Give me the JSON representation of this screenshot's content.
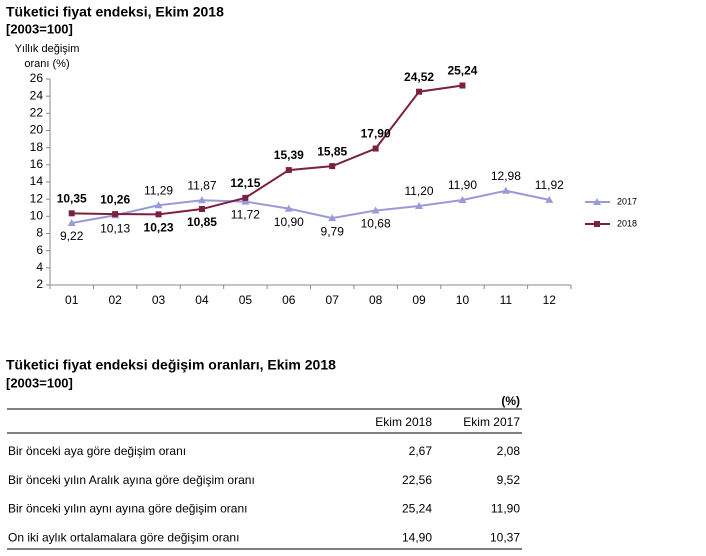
{
  "chart_data": {
    "type": "line",
    "title": "Tüketici fiyat endeksi, Ekim 2018",
    "subtitle": "[2003=100]",
    "y_label": [
      "Yıllık değişim",
      "oranı (%)"
    ],
    "categories": [
      "01",
      "02",
      "03",
      "04",
      "05",
      "06",
      "07",
      "08",
      "09",
      "10",
      "11",
      "12"
    ],
    "series": [
      {
        "name": "2017",
        "color": "#9a9ad8",
        "marker": "triangle",
        "values": [
          9.22,
          10.13,
          11.29,
          11.87,
          11.72,
          10.9,
          9.79,
          10.68,
          11.2,
          11.9,
          12.98,
          11.92
        ],
        "value_labels": [
          "9,22",
          "10,13",
          "11,29",
          "11,87",
          "11,72",
          "10,90",
          "9,79",
          "10,68",
          "11,20",
          "11,90",
          "12,98",
          "11,92"
        ]
      },
      {
        "name": "2018",
        "color": "#7b2042",
        "marker": "square",
        "values": [
          10.35,
          10.26,
          10.23,
          10.85,
          12.15,
          15.39,
          15.85,
          17.9,
          24.52,
          25.24,
          null,
          null
        ],
        "value_labels": [
          "10,35",
          "10,26",
          "10,23",
          "10,85",
          "12,15",
          "15,39",
          "15,85",
          "17,90",
          "24,52",
          "25,24",
          null,
          null
        ]
      }
    ],
    "ylim": [
      2,
      26
    ],
    "yticks": [
      2,
      4,
      6,
      8,
      10,
      12,
      14,
      16,
      18,
      20,
      22,
      24,
      26
    ],
    "grid": false,
    "legend": "right"
  },
  "table": {
    "title": "Tüketici fiyat endeksi değişim oranları, Ekim 2018",
    "subtitle": "[2003=100]",
    "unit": "(%)",
    "headers": [
      "Ekim 2018",
      "Ekim 2017"
    ],
    "rows": [
      {
        "label": "Bir önceki aya göre değişim oranı",
        "values": [
          "2,67",
          "2,08"
        ]
      },
      {
        "label": "Bir önceki yılın Aralık ayına göre değişim oranı",
        "values": [
          "22,56",
          "9,52"
        ]
      },
      {
        "label": "Bir önceki yılın aynı ayına göre değişim oranı",
        "values": [
          "25,24",
          "11,90"
        ]
      },
      {
        "label": "On iki aylık ortalamalara göre değişim oranı",
        "values": [
          "14,90",
          "10,37"
        ]
      }
    ]
  }
}
